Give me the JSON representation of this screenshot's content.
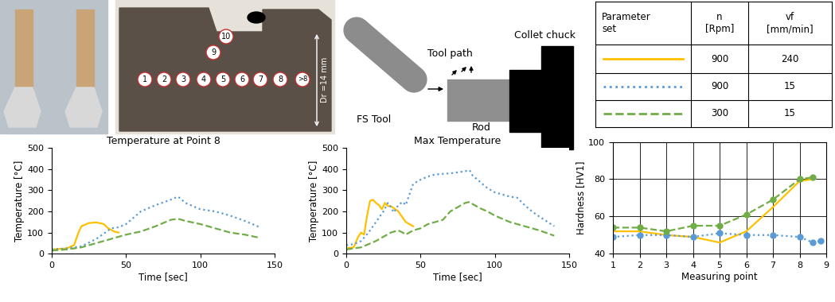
{
  "photo": {
    "point_labels": [
      "1",
      "2",
      "3",
      "4",
      "5",
      "6",
      "7",
      "8",
      ">8",
      "9",
      "10"
    ],
    "diameter_label": "Dr =14 mm"
  },
  "diagram": {
    "tool": "FS Tool",
    "path": "Tool path",
    "rod": "Rod",
    "chuck": "Collet chuck"
  },
  "table": {
    "header": [
      [
        "Parameter",
        "set"
      ],
      [
        "n",
        "[Rpm]"
      ],
      [
        "vf",
        "[mm/min]"
      ]
    ],
    "rows": [
      {
        "color": "#FFC000",
        "line_style": "solid",
        "n": 900,
        "vf": 240
      },
      {
        "color": "#5B9BD5",
        "line_style": "dotted",
        "n": 900,
        "vf": 15
      },
      {
        "color": "#70AD47",
        "line_style": "dashed",
        "n": 300,
        "vf": 15
      }
    ]
  },
  "chart_data": [
    {
      "type": "line",
      "title": "Temperature at Point 8",
      "xlabel": "Time [sec]",
      "ylabel": "Temperature [°C]",
      "xlim": [
        0,
        150
      ],
      "xticks": [
        0,
        50,
        100,
        150
      ],
      "ylim": [
        0,
        500
      ],
      "yticks": [
        0,
        100,
        200,
        300,
        400,
        500
      ],
      "grid": false,
      "series": [
        {
          "color": "#FFC000",
          "line_style": "solid",
          "marker": "none",
          "x": [
            0,
            10,
            15,
            18,
            20,
            25,
            30,
            35,
            38,
            42,
            45
          ],
          "values": [
            20,
            25,
            40,
            100,
            130,
            145,
            148,
            140,
            120,
            105,
            100
          ]
        },
        {
          "color": "#5B9BD5",
          "line_style": "dotted",
          "marker": "none",
          "x": [
            0,
            10,
            20,
            30,
            40,
            45,
            50,
            60,
            70,
            80,
            85,
            90,
            95,
            100,
            110,
            120,
            130,
            140
          ],
          "values": [
            20,
            25,
            35,
            70,
            120,
            125,
            140,
            200,
            230,
            255,
            270,
            240,
            225,
            210,
            200,
            180,
            155,
            125
          ]
        },
        {
          "color": "#70AD47",
          "line_style": "dashed",
          "marker": "none",
          "x": [
            0,
            10,
            20,
            30,
            40,
            50,
            60,
            70,
            80,
            85,
            90,
            100,
            110,
            120,
            130,
            140
          ],
          "values": [
            15,
            20,
            30,
            50,
            70,
            90,
            105,
            130,
            160,
            165,
            155,
            140,
            120,
            100,
            90,
            75
          ]
        }
      ]
    },
    {
      "type": "line",
      "title": "Max Temperature",
      "xlabel": "Time [sec]",
      "ylabel": "Temperature [°C]",
      "xlim": [
        0,
        150
      ],
      "xticks": [
        0,
        50,
        100,
        150
      ],
      "ylim": [
        0,
        500
      ],
      "yticks": [
        0,
        100,
        200,
        300,
        400,
        500
      ],
      "grid": false,
      "series": [
        {
          "color": "#FFC000",
          "line_style": "solid",
          "marker": "none",
          "x": [
            0,
            5,
            8,
            10,
            12,
            14,
            16,
            18,
            20,
            22,
            24,
            26,
            28,
            30,
            35,
            40,
            45
          ],
          "values": [
            25,
            30,
            80,
            100,
            90,
            180,
            250,
            255,
            240,
            230,
            210,
            240,
            225,
            225,
            200,
            150,
            130
          ]
        },
        {
          "color": "#5B9BD5",
          "line_style": "dotted",
          "marker": "none",
          "x": [
            0,
            5,
            10,
            15,
            20,
            25,
            28,
            30,
            32,
            35,
            38,
            40,
            42,
            45,
            50,
            55,
            60,
            70,
            80,
            83,
            85,
            90,
            95,
            100,
            105,
            110,
            115,
            120,
            125,
            130,
            140
          ],
          "values": [
            40,
            45,
            60,
            100,
            150,
            200,
            240,
            220,
            195,
            230,
            245,
            230,
            270,
            330,
            350,
            365,
            375,
            380,
            390,
            395,
            370,
            340,
            310,
            290,
            280,
            270,
            265,
            230,
            200,
            175,
            130
          ]
        },
        {
          "color": "#70AD47",
          "line_style": "dashed",
          "marker": "none",
          "x": [
            0,
            10,
            20,
            25,
            30,
            35,
            38,
            40,
            45,
            50,
            55,
            60,
            65,
            70,
            75,
            80,
            83,
            85,
            90,
            95,
            100,
            110,
            120,
            130,
            140
          ],
          "values": [
            20,
            30,
            60,
            80,
            100,
            110,
            100,
            90,
            110,
            120,
            140,
            150,
            160,
            200,
            220,
            240,
            245,
            235,
            215,
            200,
            180,
            150,
            130,
            110,
            85
          ]
        }
      ]
    },
    {
      "type": "line",
      "xlabel": "Measuring point",
      "ylabel": "Hardness [HV1]",
      "xlim": [
        1,
        9
      ],
      "xticks": [
        1,
        2,
        3,
        4,
        5,
        6,
        7,
        8,
        9
      ],
      "ylim": [
        40,
        100
      ],
      "yticks": [
        40,
        60,
        80,
        100
      ],
      "grid": true,
      "series": [
        {
          "color": "#FFC000",
          "line_style": "solid",
          "marker": "none",
          "x": [
            1,
            2,
            3,
            4,
            5,
            6,
            7,
            8,
            8.5
          ],
          "values": [
            52,
            52,
            50,
            49,
            46,
            52,
            65,
            79,
            80
          ]
        },
        {
          "color": "#5B9BD5",
          "line_style": "dotted",
          "marker": "circle",
          "x": [
            1,
            2,
            3,
            4,
            5,
            6,
            7,
            8,
            8.5,
            8.8
          ],
          "values": [
            49,
            50,
            50,
            49,
            51,
            50,
            50,
            49,
            46,
            47
          ]
        },
        {
          "color": "#70AD47",
          "line_style": "dashed",
          "marker": "circle",
          "x": [
            1,
            2,
            3,
            4,
            5,
            6,
            7,
            8,
            8.5
          ],
          "values": [
            54,
            54,
            52,
            55,
            55,
            61,
            69,
            80,
            81
          ]
        }
      ]
    }
  ]
}
